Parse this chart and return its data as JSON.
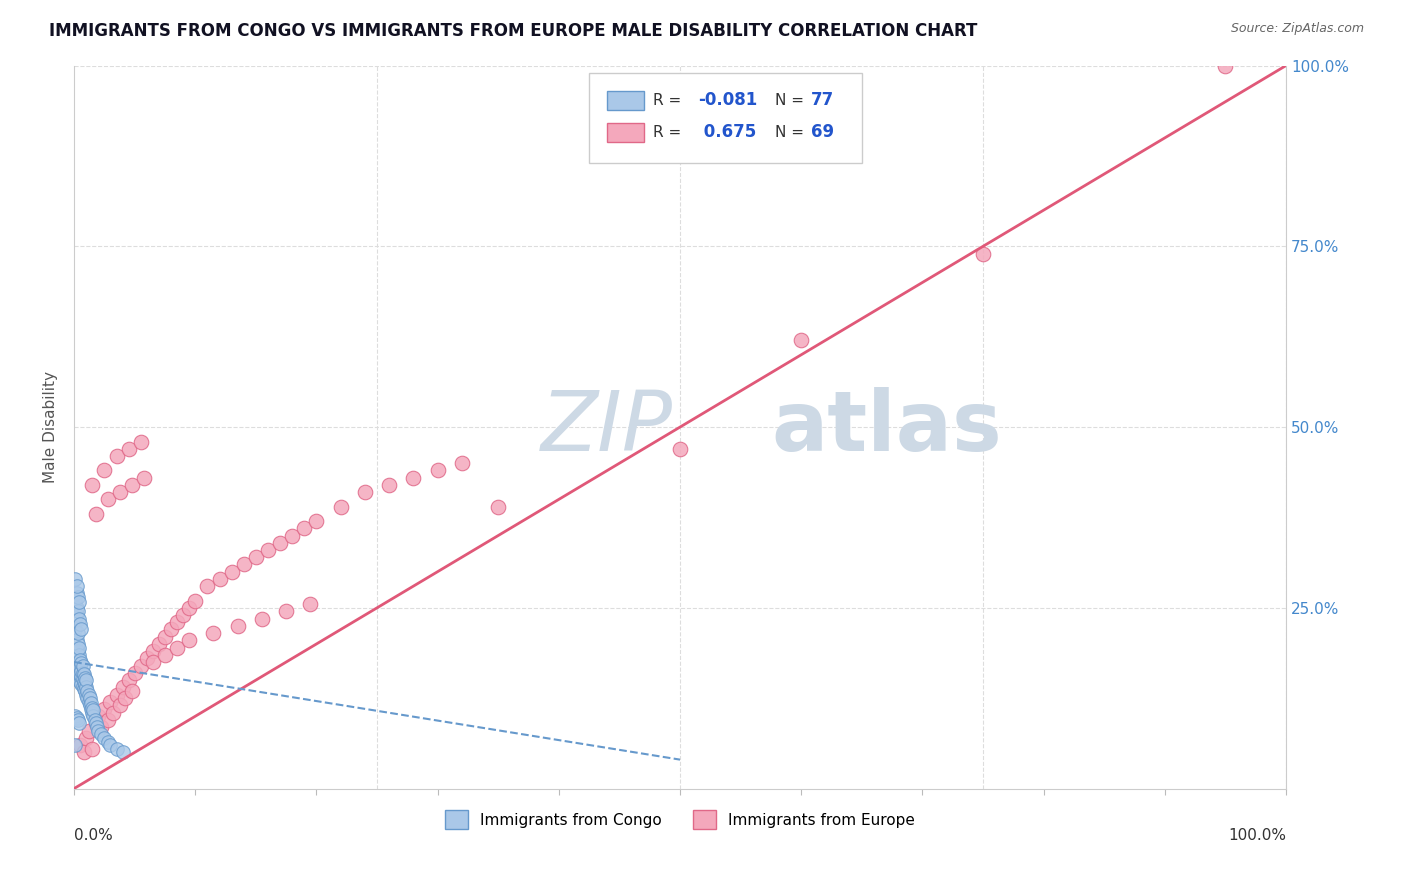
{
  "title": "IMMIGRANTS FROM CONGO VS IMMIGRANTS FROM EUROPE MALE DISABILITY CORRELATION CHART",
  "source": "Source: ZipAtlas.com",
  "ylabel": "Male Disability",
  "xlim": [
    0.0,
    1.0
  ],
  "ylim": [
    0.0,
    1.0
  ],
  "congo_color": "#aac8e8",
  "congo_edge_color": "#6699cc",
  "europe_color": "#f4a8bc",
  "europe_edge_color": "#e06888",
  "trend_europe_color": "#e05878",
  "trend_congo_color": "#6699cc",
  "watermark_color": "#cdd9e5",
  "grid_color": "#dddddd",
  "background_color": "#ffffff",
  "right_axis_color": "#4488cc",
  "title_color": "#111122",
  "source_color": "#666666",
  "legend_R_N_color": "#2255cc",
  "congo_R": "-0.081",
  "congo_N": "77",
  "europe_R": "0.675",
  "europe_N": "69",
  "europe_pts_x": [
    0.005,
    0.008,
    0.01,
    0.012,
    0.015,
    0.018,
    0.02,
    0.022,
    0.025,
    0.028,
    0.03,
    0.032,
    0.035,
    0.038,
    0.04,
    0.042,
    0.045,
    0.048,
    0.05,
    0.055,
    0.06,
    0.065,
    0.07,
    0.075,
    0.08,
    0.085,
    0.09,
    0.095,
    0.1,
    0.11,
    0.12,
    0.13,
    0.14,
    0.15,
    0.16,
    0.17,
    0.18,
    0.19,
    0.2,
    0.22,
    0.24,
    0.26,
    0.28,
    0.3,
    0.32,
    0.015,
    0.025,
    0.035,
    0.045,
    0.055,
    0.065,
    0.075,
    0.085,
    0.095,
    0.115,
    0.135,
    0.155,
    0.175,
    0.195,
    0.018,
    0.028,
    0.038,
    0.048,
    0.058,
    0.35,
    0.5,
    0.6,
    0.75,
    0.95
  ],
  "europe_pts_y": [
    0.06,
    0.05,
    0.07,
    0.08,
    0.055,
    0.09,
    0.1,
    0.085,
    0.11,
    0.095,
    0.12,
    0.105,
    0.13,
    0.115,
    0.14,
    0.125,
    0.15,
    0.135,
    0.16,
    0.17,
    0.18,
    0.19,
    0.2,
    0.21,
    0.22,
    0.23,
    0.24,
    0.25,
    0.26,
    0.28,
    0.29,
    0.3,
    0.31,
    0.32,
    0.33,
    0.34,
    0.35,
    0.36,
    0.37,
    0.39,
    0.41,
    0.42,
    0.43,
    0.44,
    0.45,
    0.42,
    0.44,
    0.46,
    0.47,
    0.48,
    0.175,
    0.185,
    0.195,
    0.205,
    0.215,
    0.225,
    0.235,
    0.245,
    0.255,
    0.38,
    0.4,
    0.41,
    0.42,
    0.43,
    0.39,
    0.47,
    0.62,
    0.74,
    1.0
  ],
  "congo_pts_x": [
    0.001,
    0.001,
    0.002,
    0.002,
    0.002,
    0.002,
    0.002,
    0.003,
    0.003,
    0.003,
    0.003,
    0.003,
    0.003,
    0.004,
    0.004,
    0.004,
    0.004,
    0.004,
    0.005,
    0.005,
    0.005,
    0.005,
    0.006,
    0.006,
    0.006,
    0.006,
    0.007,
    0.007,
    0.007,
    0.007,
    0.008,
    0.008,
    0.008,
    0.009,
    0.009,
    0.009,
    0.01,
    0.01,
    0.01,
    0.011,
    0.011,
    0.012,
    0.012,
    0.013,
    0.013,
    0.014,
    0.014,
    0.015,
    0.015,
    0.016,
    0.016,
    0.017,
    0.018,
    0.019,
    0.02,
    0.022,
    0.025,
    0.028,
    0.03,
    0.035,
    0.04,
    0.001,
    0.002,
    0.003,
    0.004,
    0.005,
    0.006,
    0.002,
    0.003,
    0.004,
    0.001,
    0.002,
    0.001,
    0.002,
    0.003,
    0.004,
    0.001
  ],
  "congo_pts_y": [
    0.18,
    0.22,
    0.16,
    0.175,
    0.19,
    0.205,
    0.24,
    0.155,
    0.165,
    0.175,
    0.19,
    0.2,
    0.215,
    0.15,
    0.163,
    0.175,
    0.185,
    0.195,
    0.148,
    0.158,
    0.168,
    0.178,
    0.145,
    0.155,
    0.163,
    0.173,
    0.142,
    0.152,
    0.16,
    0.17,
    0.138,
    0.148,
    0.158,
    0.135,
    0.145,
    0.153,
    0.13,
    0.14,
    0.15,
    0.125,
    0.135,
    0.12,
    0.13,
    0.115,
    0.125,
    0.11,
    0.118,
    0.105,
    0.112,
    0.1,
    0.108,
    0.095,
    0.09,
    0.085,
    0.08,
    0.075,
    0.07,
    0.065,
    0.06,
    0.055,
    0.05,
    0.26,
    0.25,
    0.245,
    0.235,
    0.228,
    0.22,
    0.27,
    0.265,
    0.258,
    0.29,
    0.28,
    0.1,
    0.098,
    0.095,
    0.09,
    0.06
  ],
  "europe_trend_x0": 0.0,
  "europe_trend_y0": 0.0,
  "europe_trend_x1": 1.0,
  "europe_trend_y1": 1.0,
  "congo_trend_x0": 0.0,
  "congo_trend_y0": 0.175,
  "congo_trend_x1": 0.5,
  "congo_trend_y1": 0.04
}
